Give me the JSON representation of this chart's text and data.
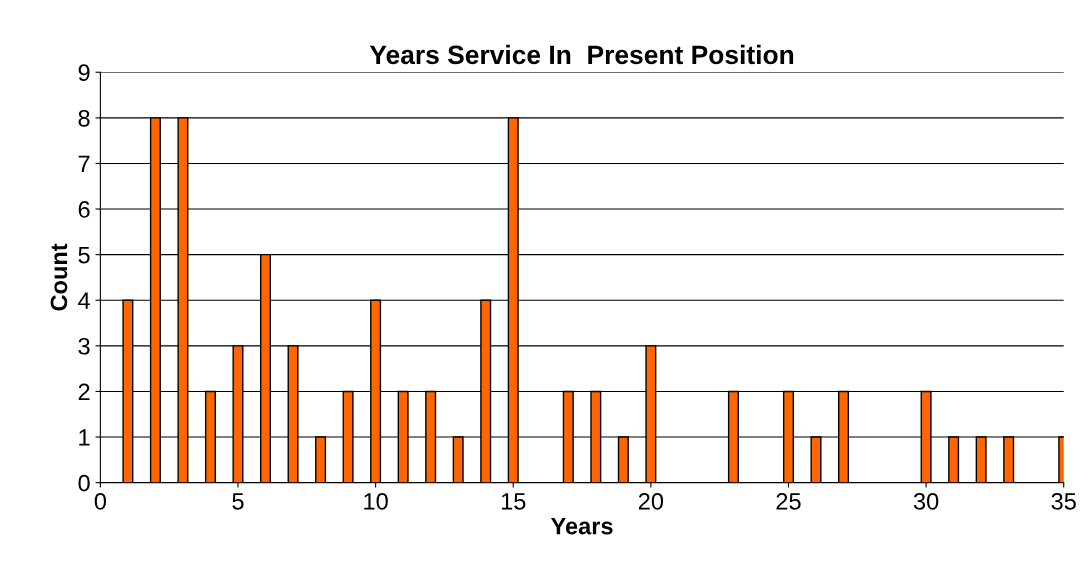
{
  "chart_data": {
    "type": "bar",
    "title": "Years Service In  Present Position",
    "xlabel": "Years",
    "ylabel": "Count",
    "x": [
      1,
      2,
      3,
      4,
      5,
      6,
      7,
      8,
      9,
      10,
      11,
      12,
      13,
      14,
      15,
      17,
      18,
      19,
      20,
      23,
      25,
      26,
      27,
      30,
      31,
      32,
      33,
      35
    ],
    "values": [
      4,
      8,
      8,
      2,
      3,
      5,
      3,
      1,
      2,
      4,
      2,
      2,
      1,
      4,
      8,
      2,
      2,
      1,
      3,
      2,
      2,
      1,
      2,
      2,
      1,
      1,
      1,
      1
    ],
    "color": "#ff6600",
    "xlim": [
      0,
      35
    ],
    "xticks": [
      0,
      5,
      10,
      15,
      20,
      25,
      30,
      35
    ],
    "ylim": [
      0,
      9
    ],
    "yticks": [
      0,
      1,
      2,
      3,
      4,
      5,
      6,
      7,
      8,
      9
    ],
    "grid": "y",
    "legend": false
  }
}
